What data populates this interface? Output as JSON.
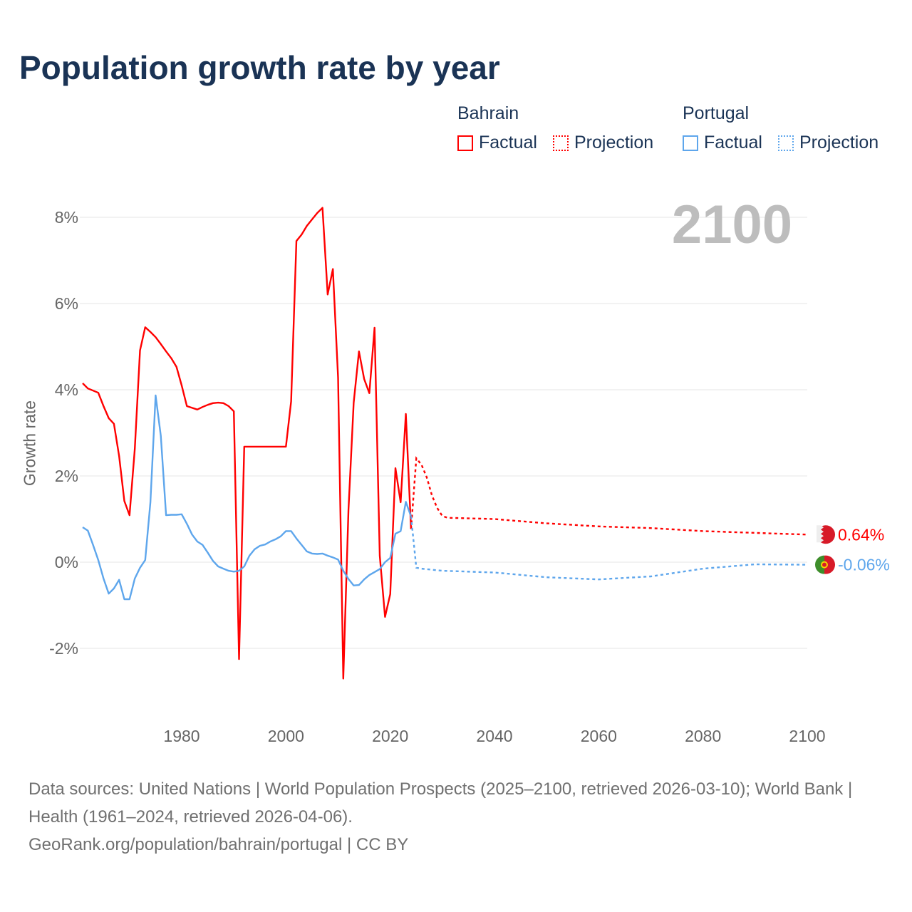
{
  "title": "Population growth rate by year",
  "legend": {
    "groups": [
      {
        "name": "Bahrain",
        "factual": "Factual",
        "projection": "Projection",
        "color": "#ff0000"
      },
      {
        "name": "Portugal",
        "factual": "Factual",
        "projection": "Projection",
        "color": "#5ea6ec"
      }
    ]
  },
  "year_display": "2100",
  "footer": {
    "sources": "Data sources: United Nations | World Population Prospects (2025–2100, retrieved 2026-03-10); World Bank | Health (1961–2024, retrieved 2026-04-06).",
    "credit": "GeoRank.org/population/bahrain/portugal | CC BY"
  },
  "chart_data": {
    "type": "line",
    "title": "Population growth rate by year",
    "xlabel": "",
    "ylabel": "Growth rate",
    "xlim": [
      1961,
      2100
    ],
    "ylim": [
      -3.6,
      8.9
    ],
    "xticks": [
      1980,
      2000,
      2020,
      2040,
      2060,
      2080,
      2100
    ],
    "yticks": [
      -2,
      0,
      2,
      4,
      6,
      8
    ],
    "ytick_labels": [
      "-2%",
      "0%",
      "2%",
      "4%",
      "6%",
      "8%"
    ],
    "grid": true,
    "legend_position": "top-right",
    "series": [
      {
        "name": "Bahrain",
        "color": "#ff0000",
        "end_label": "0.64%",
        "factual": {
          "x": [
            1961,
            1962,
            1963,
            1964,
            1965,
            1966,
            1967,
            1968,
            1969,
            1970,
            1971,
            1972,
            1973,
            1974,
            1975,
            1976,
            1977,
            1978,
            1979,
            1980,
            1981,
            1982,
            1983,
            1984,
            1985,
            1986,
            1987,
            1988,
            1989,
            1990,
            1991,
            1992,
            1993,
            1994,
            1995,
            1996,
            1997,
            1998,
            1999,
            2000,
            2001,
            2002,
            2003,
            2004,
            2005,
            2006,
            2007,
            2008,
            2009,
            2010,
            2011,
            2012,
            2013,
            2014,
            2015,
            2016,
            2017,
            2018,
            2019,
            2020,
            2021,
            2022,
            2023,
            2024
          ],
          "y": [
            4.15,
            4.03,
            3.98,
            3.93,
            3.62,
            3.34,
            3.21,
            2.46,
            1.42,
            1.09,
            2.63,
            4.91,
            5.45,
            5.34,
            5.22,
            5.06,
            4.89,
            4.73,
            4.53,
            4.1,
            3.62,
            3.58,
            3.54,
            3.6,
            3.65,
            3.69,
            3.7,
            3.69,
            3.62,
            3.5,
            -2.25,
            2.68,
            2.68,
            2.68,
            2.68,
            2.68,
            2.68,
            2.68,
            2.68,
            2.68,
            3.73,
            7.45,
            7.6,
            7.8,
            7.95,
            8.1,
            8.22,
            6.21,
            6.8,
            4.28,
            -2.7,
            1.22,
            3.7,
            4.89,
            4.25,
            3.92,
            5.44,
            0.15,
            -1.27,
            -0.74,
            2.18,
            1.39,
            3.44,
            0.77
          ]
        },
        "projection": {
          "x": [
            2024,
            2025,
            2026,
            2027,
            2028,
            2029,
            2030,
            2031,
            2040,
            2050,
            2060,
            2070,
            2080,
            2090,
            2100
          ],
          "y": [
            0.77,
            2.41,
            2.26,
            1.97,
            1.55,
            1.26,
            1.07,
            1.03,
            1.0,
            0.9,
            0.83,
            0.79,
            0.72,
            0.68,
            0.64
          ]
        }
      },
      {
        "name": "Portugal",
        "color": "#5ea6ec",
        "end_label": "-0.06%",
        "factual": {
          "x": [
            1961,
            1962,
            1963,
            1964,
            1965,
            1966,
            1967,
            1968,
            1969,
            1970,
            1971,
            1972,
            1973,
            1974,
            1975,
            1976,
            1977,
            1978,
            1979,
            1980,
            1981,
            1982,
            1983,
            1984,
            1985,
            1986,
            1987,
            1988,
            1989,
            1990,
            1991,
            1992,
            1993,
            1994,
            1995,
            1996,
            1997,
            1998,
            1999,
            2000,
            2001,
            2002,
            2003,
            2004,
            2005,
            2006,
            2007,
            2008,
            2009,
            2010,
            2011,
            2012,
            2013,
            2014,
            2015,
            2016,
            2017,
            2018,
            2019,
            2020,
            2021,
            2022,
            2023,
            2024
          ],
          "y": [
            0.81,
            0.73,
            0.4,
            0.05,
            -0.38,
            -0.73,
            -0.61,
            -0.41,
            -0.86,
            -0.86,
            -0.38,
            -0.13,
            0.05,
            1.39,
            3.87,
            2.93,
            1.09,
            1.1,
            1.1,
            1.11,
            0.89,
            0.64,
            0.48,
            0.4,
            0.22,
            0.03,
            -0.1,
            -0.15,
            -0.2,
            -0.22,
            -0.2,
            -0.1,
            0.15,
            0.3,
            0.38,
            0.41,
            0.48,
            0.53,
            0.6,
            0.72,
            0.72,
            0.55,
            0.4,
            0.25,
            0.2,
            0.19,
            0.2,
            0.15,
            0.11,
            0.06,
            -0.2,
            -0.39,
            -0.54,
            -0.53,
            -0.4,
            -0.3,
            -0.23,
            -0.16,
            0.0,
            0.1,
            0.66,
            0.72,
            1.4,
            1.06
          ]
        },
        "projection": {
          "x": [
            2024,
            2025,
            2026,
            2030,
            2040,
            2050,
            2060,
            2070,
            2080,
            2090,
            2100
          ],
          "y": [
            1.06,
            -0.13,
            -0.15,
            -0.2,
            -0.24,
            -0.35,
            -0.4,
            -0.33,
            -0.15,
            -0.05,
            -0.06
          ]
        }
      }
    ]
  }
}
